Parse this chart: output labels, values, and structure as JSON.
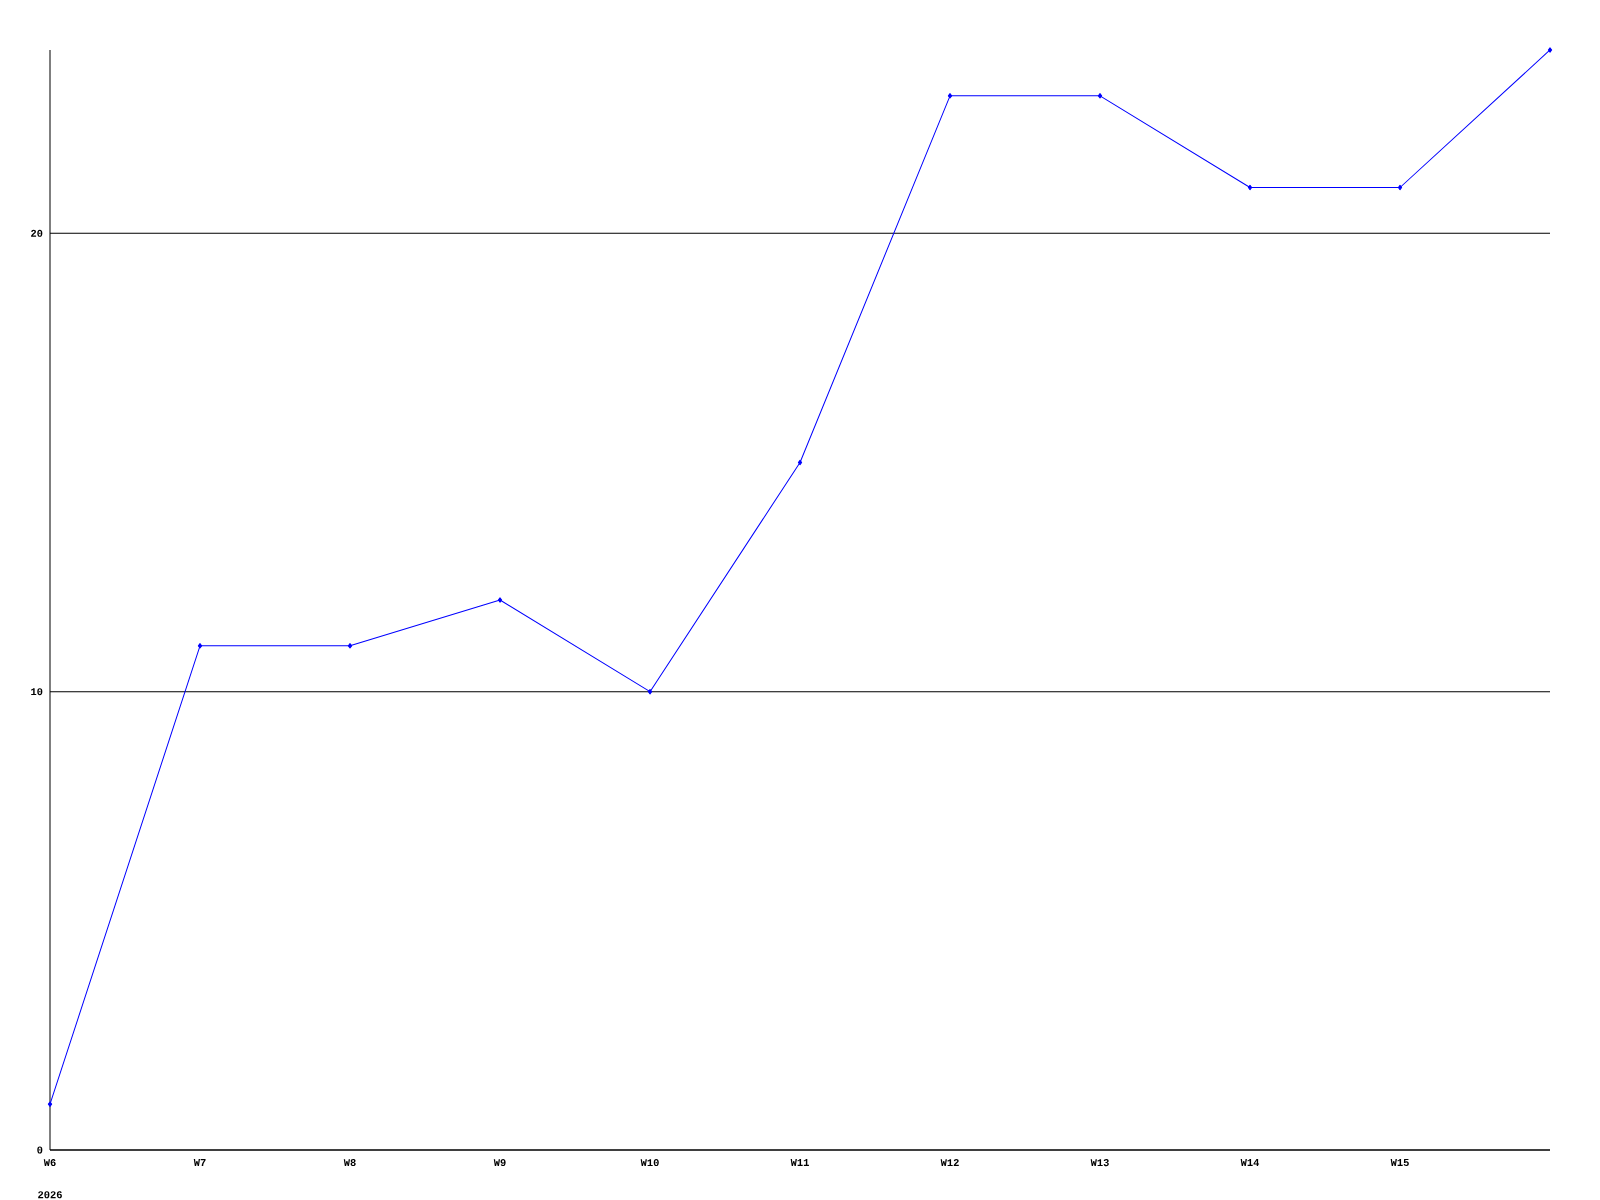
{
  "chart_data": {
    "type": "line",
    "categories": [
      "W6",
      "W7",
      "W8",
      "W9",
      "W10",
      "W11",
      "W12",
      "W13",
      "W14",
      "W15",
      null
    ],
    "series": [
      {
        "color": "#0000ff",
        "values": [
          1,
          11,
          11,
          12,
          10,
          15,
          23,
          23,
          21,
          21,
          24
        ]
      }
    ],
    "ylim": [
      0,
      24
    ],
    "yticks": [
      0,
      10,
      20
    ],
    "grid": "y",
    "marker": "diamond",
    "annotations": [
      "2026"
    ]
  }
}
